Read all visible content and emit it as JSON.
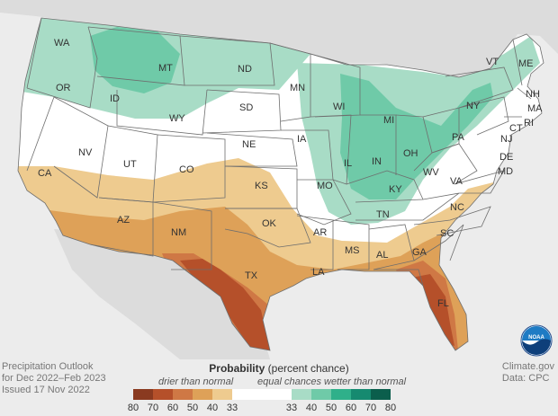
{
  "caption": {
    "line1": "Precipitation Outlook",
    "line2": "for Dec 2022–Feb 2023",
    "line3": "Issued 17 Nov 2022"
  },
  "credit": {
    "line1": "Climate.gov",
    "line2": "Data: CPC"
  },
  "logo": {
    "text": "NOAA",
    "icon": "noaa-logo"
  },
  "legend": {
    "title_bold": "Probability",
    "title_rest": "(percent chance)",
    "drier": "drier than normal",
    "equal": "equal chances",
    "wetter": "wetter than normal",
    "dry_ticks": [
      "80",
      "70",
      "60",
      "50",
      "40",
      "33"
    ],
    "wet_ticks": [
      "33",
      "40",
      "50",
      "60",
      "70",
      "80"
    ],
    "dry_colors": [
      "#8a3a20",
      "#b5502a",
      "#cf7845",
      "#dea158",
      "#eecb8f"
    ],
    "equal_color": "#ffffff",
    "wet_colors": [
      "#a8dcc6",
      "#6fcaa8",
      "#2fb08a",
      "#168a70",
      "#0b5e4c"
    ]
  },
  "states": [
    "WA",
    "OR",
    "ID",
    "MT",
    "WY",
    "ND",
    "SD",
    "MN",
    "WI",
    "MI",
    "VT",
    "ME",
    "NH",
    "MA",
    "NY",
    "RI",
    "CT",
    "NJ",
    "PA",
    "DE",
    "MD",
    "OH",
    "IN",
    "IL",
    "IA",
    "NE",
    "NV",
    "UT",
    "CO",
    "KS",
    "MO",
    "KY",
    "WV",
    "VA",
    "CA",
    "AZ",
    "NM",
    "OK",
    "AR",
    "TN",
    "NC",
    "SC",
    "GA",
    "AL",
    "MS",
    "LA",
    "TX",
    "FL"
  ]
}
